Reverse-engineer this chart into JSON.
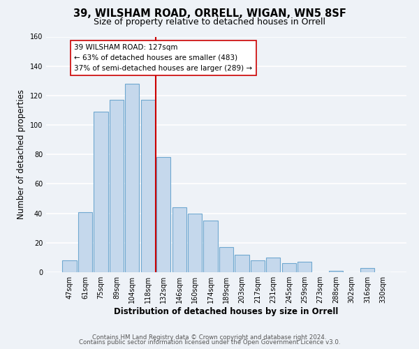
{
  "title": "39, WILSHAM ROAD, ORRELL, WIGAN, WN5 8SF",
  "subtitle": "Size of property relative to detached houses in Orrell",
  "xlabel": "Distribution of detached houses by size in Orrell",
  "ylabel": "Number of detached properties",
  "bar_labels": [
    "47sqm",
    "61sqm",
    "75sqm",
    "89sqm",
    "104sqm",
    "118sqm",
    "132sqm",
    "146sqm",
    "160sqm",
    "174sqm",
    "189sqm",
    "203sqm",
    "217sqm",
    "231sqm",
    "245sqm",
    "259sqm",
    "273sqm",
    "288sqm",
    "302sqm",
    "316sqm",
    "330sqm"
  ],
  "bar_heights": [
    8,
    41,
    109,
    117,
    128,
    117,
    78,
    44,
    40,
    35,
    17,
    12,
    8,
    10,
    6,
    7,
    0,
    1,
    0,
    3,
    0
  ],
  "bar_color": "#c5d8ec",
  "bar_edge_color": "#6fa8d0",
  "bar_edge_width": 0.8,
  "vline_x": 5.5,
  "vline_color": "#cc0000",
  "annotation_title": "39 WILSHAM ROAD: 127sqm",
  "annotation_line1": "← 63% of detached houses are smaller (483)",
  "annotation_line2": "37% of semi-detached houses are larger (289) →",
  "annotation_box_color": "#ffffff",
  "annotation_box_edge": "#cc0000",
  "ylim": [
    0,
    160
  ],
  "yticks": [
    0,
    20,
    40,
    60,
    80,
    100,
    120,
    140,
    160
  ],
  "footer1": "Contains HM Land Registry data © Crown copyright and database right 2024.",
  "footer2": "Contains public sector information licensed under the Open Government Licence v3.0.",
  "bg_color": "#eef2f7",
  "plot_bg_color": "#eef2f7",
  "grid_color": "#ffffff",
  "title_fontsize": 10.5,
  "subtitle_fontsize": 9,
  "axis_label_fontsize": 8.5,
  "tick_fontsize": 7,
  "annotation_fontsize": 7.5,
  "footer_fontsize": 6.2
}
